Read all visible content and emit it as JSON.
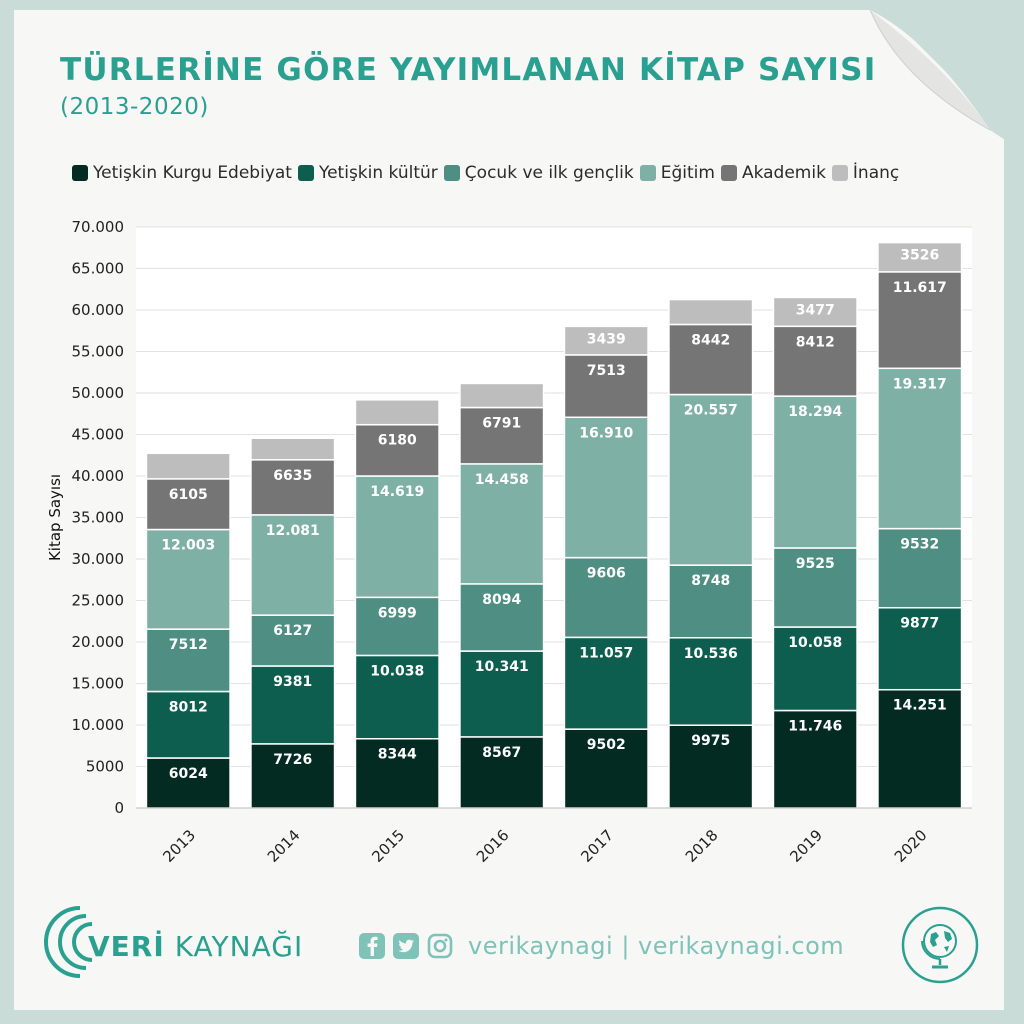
{
  "header": {
    "title": "TÜRLERİNE GÖRE YAYIMLANAN KİTAP SAYISI",
    "subtitle": "(2013-2020)"
  },
  "colors": {
    "brand": "#2aa090",
    "series": [
      "#032b22",
      "#0e5e4f",
      "#4f8e82",
      "#7fb0a6",
      "#757575",
      "#bdbdbd"
    ]
  },
  "chart_data": {
    "type": "bar",
    "stacked": true,
    "categories": [
      "2013",
      "2014",
      "2015",
      "2016",
      "2017",
      "2018",
      "2019",
      "2020"
    ],
    "ylabel": "Kitap Sayısı",
    "ylim": [
      0,
      70000
    ],
    "yticks": [
      0,
      5000,
      10000,
      15000,
      20000,
      25000,
      30000,
      35000,
      40000,
      45000,
      50000,
      55000,
      60000,
      65000,
      70000
    ],
    "ytick_labels": [
      "0",
      "5000",
      "10.000",
      "15.000",
      "20.000",
      "25.000",
      "30.000",
      "35.000",
      "40.000",
      "45.000",
      "50.000",
      "55.000",
      "60.000",
      "65.000",
      "70.000"
    ],
    "grid": true,
    "legend_position": "top",
    "series": [
      {
        "name": "Yetişkin Kurgu Edebiyat",
        "values": [
          6024,
          7726,
          8344,
          8567,
          9502,
          9975,
          11746,
          14251
        ],
        "labels": [
          "6024",
          "7726",
          "8344",
          "8567",
          "9502",
          "9975",
          "11.746",
          "14.251"
        ]
      },
      {
        "name": "Yetişkin kültür",
        "values": [
          8012,
          9381,
          10038,
          10341,
          11057,
          10536,
          10058,
          9877
        ],
        "labels": [
          "8012",
          "9381",
          "10.038",
          "10.341",
          "11.057",
          "10.536",
          "10.058",
          "9877"
        ]
      },
      {
        "name": "Çocuk ve ilk gençlik",
        "values": [
          7512,
          6127,
          6999,
          8094,
          9606,
          8748,
          9525,
          9532
        ],
        "labels": [
          "7512",
          "6127",
          "6999",
          "8094",
          "9606",
          "8748",
          "9525",
          "9532"
        ]
      },
      {
        "name": "Eğitim",
        "values": [
          12003,
          12081,
          14619,
          14458,
          16910,
          20557,
          18294,
          19317
        ],
        "labels": [
          "12.003",
          "12.081",
          "14.619",
          "14.458",
          "16.910",
          "20.557",
          "18.294",
          "19.317"
        ]
      },
      {
        "name": "Akademik",
        "values": [
          6105,
          6635,
          6180,
          6791,
          7513,
          8442,
          8412,
          11617
        ],
        "labels": [
          "6105",
          "6635",
          "6180",
          "6791",
          "7513",
          "8442",
          "8412",
          "11.617"
        ]
      },
      {
        "name": "İnanç",
        "values": [
          3080,
          2600,
          3000,
          2900,
          3439,
          3000,
          3477,
          3526
        ],
        "labels": [
          "",
          "",
          "",
          "",
          "3439",
          "",
          "3477",
          "3526"
        ]
      }
    ]
  },
  "footer": {
    "brand_prefix": "VERİ",
    "brand_suffix": "KAYNAĞI",
    "social_text": "verikaynagi | verikaynagi.com"
  }
}
